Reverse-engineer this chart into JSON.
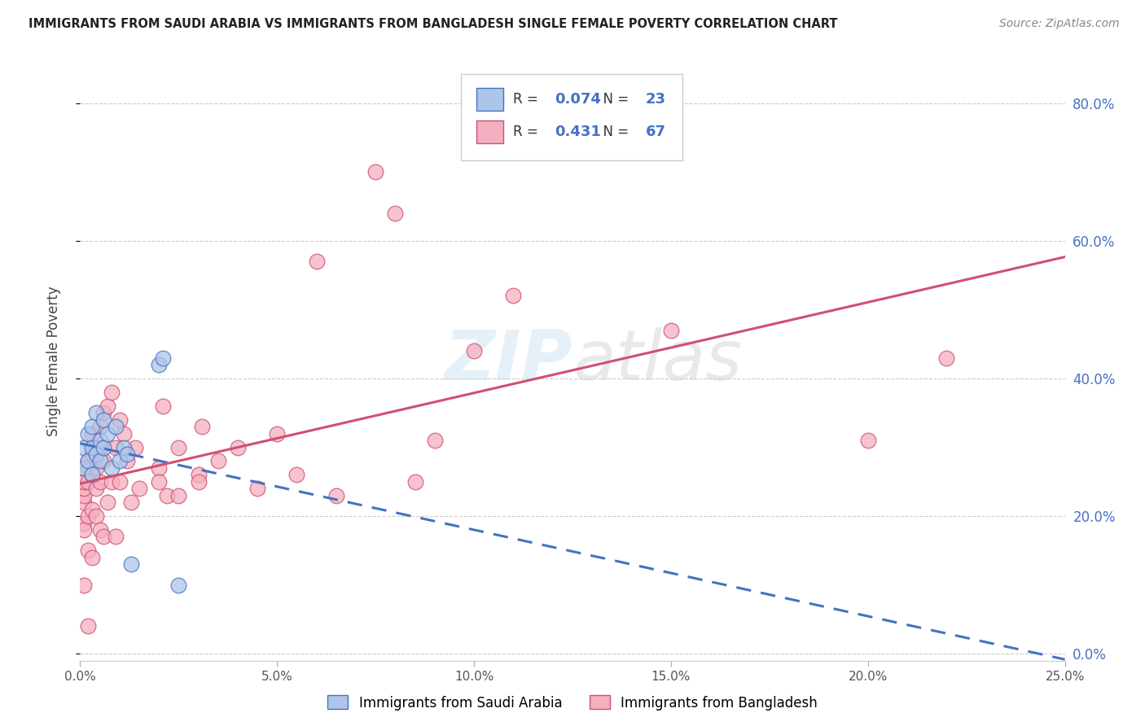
{
  "title": "IMMIGRANTS FROM SAUDI ARABIA VS IMMIGRANTS FROM BANGLADESH SINGLE FEMALE POVERTY CORRELATION CHART",
  "source": "Source: ZipAtlas.com",
  "ylabel": "Single Female Poverty",
  "legend1_label": "Immigrants from Saudi Arabia",
  "legend2_label": "Immigrants from Bangladesh",
  "R_saudi": "0.074",
  "N_saudi": "23",
  "R_bangladesh": "0.431",
  "N_bangladesh": "67",
  "xlim": [
    0.0,
    0.25
  ],
  "ylim": [
    -0.01,
    0.86
  ],
  "yticks": [
    0.0,
    0.2,
    0.4,
    0.6,
    0.8
  ],
  "xticks": [
    0.0,
    0.05,
    0.1,
    0.15,
    0.2,
    0.25
  ],
  "color_saudi_fill": "#adc6e8",
  "color_saudi_edge": "#4472c4",
  "color_bang_fill": "#f4afc0",
  "color_bang_edge": "#d05070",
  "color_right_axis": "#4472c4",
  "saudi_x": [
    0.001,
    0.001,
    0.002,
    0.002,
    0.003,
    0.003,
    0.003,
    0.004,
    0.004,
    0.005,
    0.005,
    0.006,
    0.006,
    0.007,
    0.008,
    0.009,
    0.01,
    0.011,
    0.012,
    0.013,
    0.02,
    0.021,
    0.025
  ],
  "saudi_y": [
    0.27,
    0.3,
    0.28,
    0.32,
    0.26,
    0.3,
    0.33,
    0.29,
    0.35,
    0.31,
    0.28,
    0.34,
    0.3,
    0.32,
    0.27,
    0.33,
    0.28,
    0.3,
    0.29,
    0.13,
    0.42,
    0.43,
    0.1
  ],
  "bangladesh_x": [
    0.001,
    0.001,
    0.001,
    0.001,
    0.001,
    0.001,
    0.001,
    0.002,
    0.002,
    0.002,
    0.002,
    0.002,
    0.002,
    0.003,
    0.003,
    0.003,
    0.003,
    0.003,
    0.004,
    0.004,
    0.004,
    0.004,
    0.005,
    0.005,
    0.005,
    0.005,
    0.006,
    0.006,
    0.006,
    0.007,
    0.007,
    0.008,
    0.008,
    0.009,
    0.009,
    0.01,
    0.01,
    0.011,
    0.012,
    0.013,
    0.014,
    0.015,
    0.02,
    0.02,
    0.021,
    0.022,
    0.025,
    0.025,
    0.03,
    0.03,
    0.031,
    0.035,
    0.04,
    0.045,
    0.05,
    0.055,
    0.06,
    0.065,
    0.075,
    0.08,
    0.085,
    0.09,
    0.1,
    0.11,
    0.15,
    0.2,
    0.22
  ],
  "bangladesh_y": [
    0.22,
    0.23,
    0.24,
    0.25,
    0.19,
    0.18,
    0.1,
    0.27,
    0.28,
    0.25,
    0.2,
    0.15,
    0.04,
    0.26,
    0.29,
    0.32,
    0.21,
    0.14,
    0.3,
    0.27,
    0.24,
    0.2,
    0.33,
    0.3,
    0.25,
    0.18,
    0.35,
    0.28,
    0.17,
    0.36,
    0.22,
    0.38,
    0.25,
    0.3,
    0.17,
    0.34,
    0.25,
    0.32,
    0.28,
    0.22,
    0.3,
    0.24,
    0.27,
    0.25,
    0.36,
    0.23,
    0.3,
    0.23,
    0.26,
    0.25,
    0.33,
    0.28,
    0.3,
    0.24,
    0.32,
    0.26,
    0.57,
    0.23,
    0.7,
    0.64,
    0.25,
    0.31,
    0.44,
    0.52,
    0.47,
    0.31,
    0.43
  ]
}
